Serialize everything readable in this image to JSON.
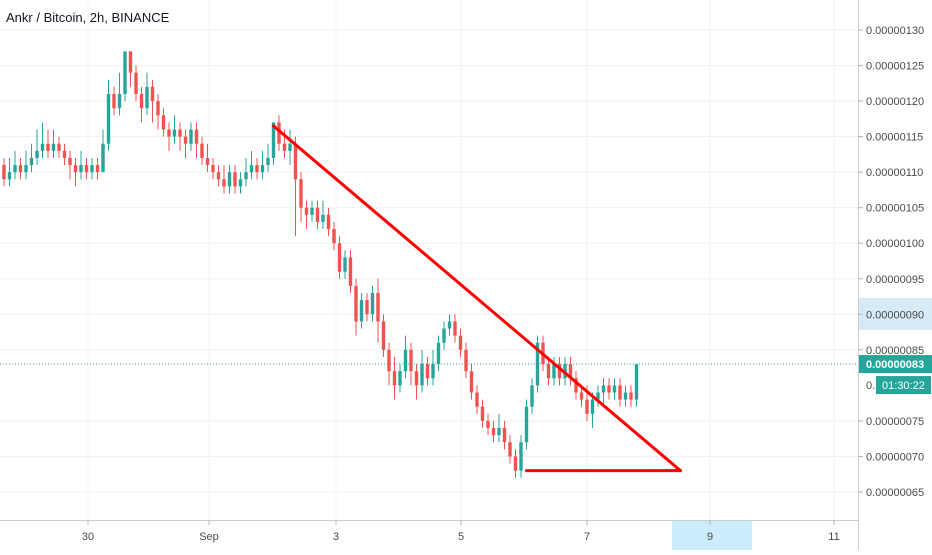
{
  "header": {
    "title": "Ankr / Bitcoin, 2h, BINANCE"
  },
  "price_axis": {
    "ticks": [
      "0.00000130",
      "0.00000125",
      "0.00000120",
      "0.00000115",
      "0.00000110",
      "0.00000105",
      "0.00000100",
      "0.00000095",
      "0.00000090",
      "0.00000085",
      "0.00000075",
      "0.00000070",
      "0.00000065"
    ],
    "current_price_label": "0.00000083",
    "countdown_label": "01:30:22",
    "partial_label": "0."
  },
  "time_axis": {
    "labels": [
      "30",
      "Sep",
      "3",
      "5",
      "7",
      "9",
      "11"
    ]
  },
  "colors": {
    "up": "#26a69a",
    "down": "#ef5350",
    "drawing": "#ff0000",
    "grid": "#eef0f3",
    "axis_text": "#4a4a4a",
    "price_label_bg": "#26a69a",
    "axis_highlight": "#d6eaf8",
    "pointer_highlight": "#ccebfb"
  },
  "chart_data": {
    "type": "candlestick",
    "title": "Ankr / Bitcoin, 2h, BINANCE",
    "xlabel": "",
    "ylabel": "",
    "ylim": [
      6.3e-07,
      1.33e-06
    ],
    "x_axis_ticks": [
      "30",
      "Sep",
      "3",
      "5",
      "7",
      "9",
      "11"
    ],
    "current_price": 8.3e-07,
    "grid": true,
    "candles": [
      [
        111,
        109,
        112,
        108
      ],
      [
        109,
        110,
        112,
        108
      ],
      [
        110,
        111,
        113,
        109
      ],
      [
        111,
        110,
        112,
        109
      ],
      [
        110,
        111,
        113,
        109
      ],
      [
        111,
        112,
        114,
        110
      ],
      [
        112,
        113,
        116,
        111
      ],
      [
        113,
        114,
        117,
        112
      ],
      [
        114,
        113,
        116,
        112
      ],
      [
        113,
        114,
        116,
        112
      ],
      [
        114,
        113,
        115,
        112
      ],
      [
        113,
        112,
        114,
        111
      ],
      [
        112,
        111,
        113,
        109
      ],
      [
        111,
        110,
        112,
        108
      ],
      [
        110,
        111,
        113,
        109
      ],
      [
        111,
        110,
        112,
        109
      ],
      [
        110,
        111,
        112,
        109
      ],
      [
        111,
        110,
        112,
        109
      ],
      [
        110,
        114,
        116,
        110
      ],
      [
        114,
        121,
        123,
        113
      ],
      [
        121,
        119,
        122,
        118
      ],
      [
        119,
        121,
        124,
        118
      ],
      [
        121,
        127,
        127,
        120
      ],
      [
        127,
        124,
        127,
        122
      ],
      [
        124,
        121,
        125,
        120
      ],
      [
        121,
        119,
        122,
        117
      ],
      [
        119,
        122,
        124,
        118
      ],
      [
        122,
        120,
        123,
        117
      ],
      [
        120,
        118,
        121,
        116
      ],
      [
        118,
        116,
        119,
        115
      ],
      [
        116,
        115,
        117,
        113
      ],
      [
        115,
        116,
        118,
        114
      ],
      [
        116,
        115,
        117,
        113
      ],
      [
        115,
        114,
        116,
        112
      ],
      [
        114,
        116,
        117,
        113
      ],
      [
        116,
        114,
        117,
        112
      ],
      [
        114,
        112,
        115,
        111
      ],
      [
        112,
        111,
        114,
        110
      ],
      [
        111,
        110,
        112,
        109
      ],
      [
        110,
        109,
        111,
        108
      ],
      [
        109,
        108,
        111,
        107
      ],
      [
        108,
        110,
        111,
        107
      ],
      [
        110,
        108,
        111,
        107
      ],
      [
        108,
        109,
        110,
        107
      ],
      [
        109,
        110,
        112,
        108
      ],
      [
        110,
        111,
        113,
        109
      ],
      [
        111,
        110,
        112,
        109
      ],
      [
        110,
        111,
        113,
        109
      ],
      [
        111,
        112,
        114,
        110
      ],
      [
        112,
        117,
        117,
        111
      ],
      [
        117,
        114,
        118,
        113
      ],
      [
        114,
        113,
        116,
        112
      ],
      [
        113,
        114,
        116,
        111
      ],
      [
        114,
        109,
        115,
        101
      ],
      [
        109,
        105,
        110,
        103
      ],
      [
        105,
        104,
        106,
        102
      ],
      [
        104,
        105,
        106,
        103
      ],
      [
        105,
        103,
        106,
        102
      ],
      [
        103,
        104,
        106,
        102
      ],
      [
        104,
        102,
        105,
        101
      ],
      [
        102,
        100,
        103,
        99
      ],
      [
        100,
        96,
        101,
        95
      ],
      [
        96,
        98,
        99,
        95
      ],
      [
        98,
        94,
        99,
        93
      ],
      [
        94,
        89,
        95,
        87
      ],
      [
        89,
        92,
        93,
        88
      ],
      [
        92,
        90,
        93,
        89
      ],
      [
        90,
        93,
        94,
        89
      ],
      [
        93,
        89,
        95,
        86
      ],
      [
        89,
        85,
        90,
        84
      ],
      [
        85,
        82,
        86,
        80
      ],
      [
        82,
        80,
        84,
        78
      ],
      [
        80,
        82,
        83,
        79
      ],
      [
        82,
        85,
        87,
        81
      ],
      [
        85,
        82,
        86,
        80
      ],
      [
        82,
        80,
        83,
        78
      ],
      [
        80,
        83,
        85,
        79
      ],
      [
        83,
        81,
        84,
        80
      ],
      [
        81,
        83,
        85,
        80
      ],
      [
        83,
        86,
        87,
        82
      ],
      [
        86,
        88,
        89,
        85
      ],
      [
        88,
        89,
        90,
        87
      ],
      [
        89,
        87,
        90,
        86
      ],
      [
        87,
        85,
        88,
        84
      ],
      [
        85,
        82,
        86,
        81
      ],
      [
        82,
        79,
        83,
        78
      ],
      [
        79,
        77,
        80,
        76
      ],
      [
        77,
        75,
        78,
        74
      ],
      [
        75,
        74,
        76,
        73
      ],
      [
        74,
        73,
        75,
        72
      ],
      [
        73,
        74,
        76,
        72
      ],
      [
        74,
        72,
        75,
        71
      ],
      [
        72,
        70,
        73,
        69
      ],
      [
        70,
        68,
        71,
        67
      ],
      [
        68,
        72,
        73,
        67
      ],
      [
        72,
        77,
        78,
        71
      ],
      [
        77,
        80,
        81,
        76
      ],
      [
        80,
        86,
        87,
        79
      ],
      [
        86,
        83,
        87,
        82
      ],
      [
        83,
        81,
        84,
        80
      ],
      [
        81,
        83,
        84,
        80
      ],
      [
        83,
        81,
        84,
        80
      ],
      [
        81,
        83,
        84,
        80
      ],
      [
        83,
        81,
        84,
        80
      ],
      [
        81,
        79,
        82,
        78
      ],
      [
        79,
        78,
        80,
        77
      ],
      [
        78,
        76,
        80,
        75
      ],
      [
        76,
        78,
        79,
        74
      ],
      [
        78,
        79,
        80,
        77
      ],
      [
        79,
        80,
        81,
        77
      ],
      [
        80,
        79,
        81,
        78
      ],
      [
        79,
        80,
        81,
        78
      ],
      [
        80,
        78,
        81,
        77
      ],
      [
        78,
        79,
        80,
        77
      ],
      [
        79,
        78,
        80,
        77
      ],
      [
        78,
        83,
        83,
        77
      ]
    ],
    "trendlines": [
      {
        "points": [
          [
            49,
            1.165
          ],
          [
            123,
            0.68
          ]
        ]
      },
      {
        "points": [
          [
            95,
            0.68
          ],
          [
            123,
            0.68
          ]
        ]
      }
    ]
  }
}
